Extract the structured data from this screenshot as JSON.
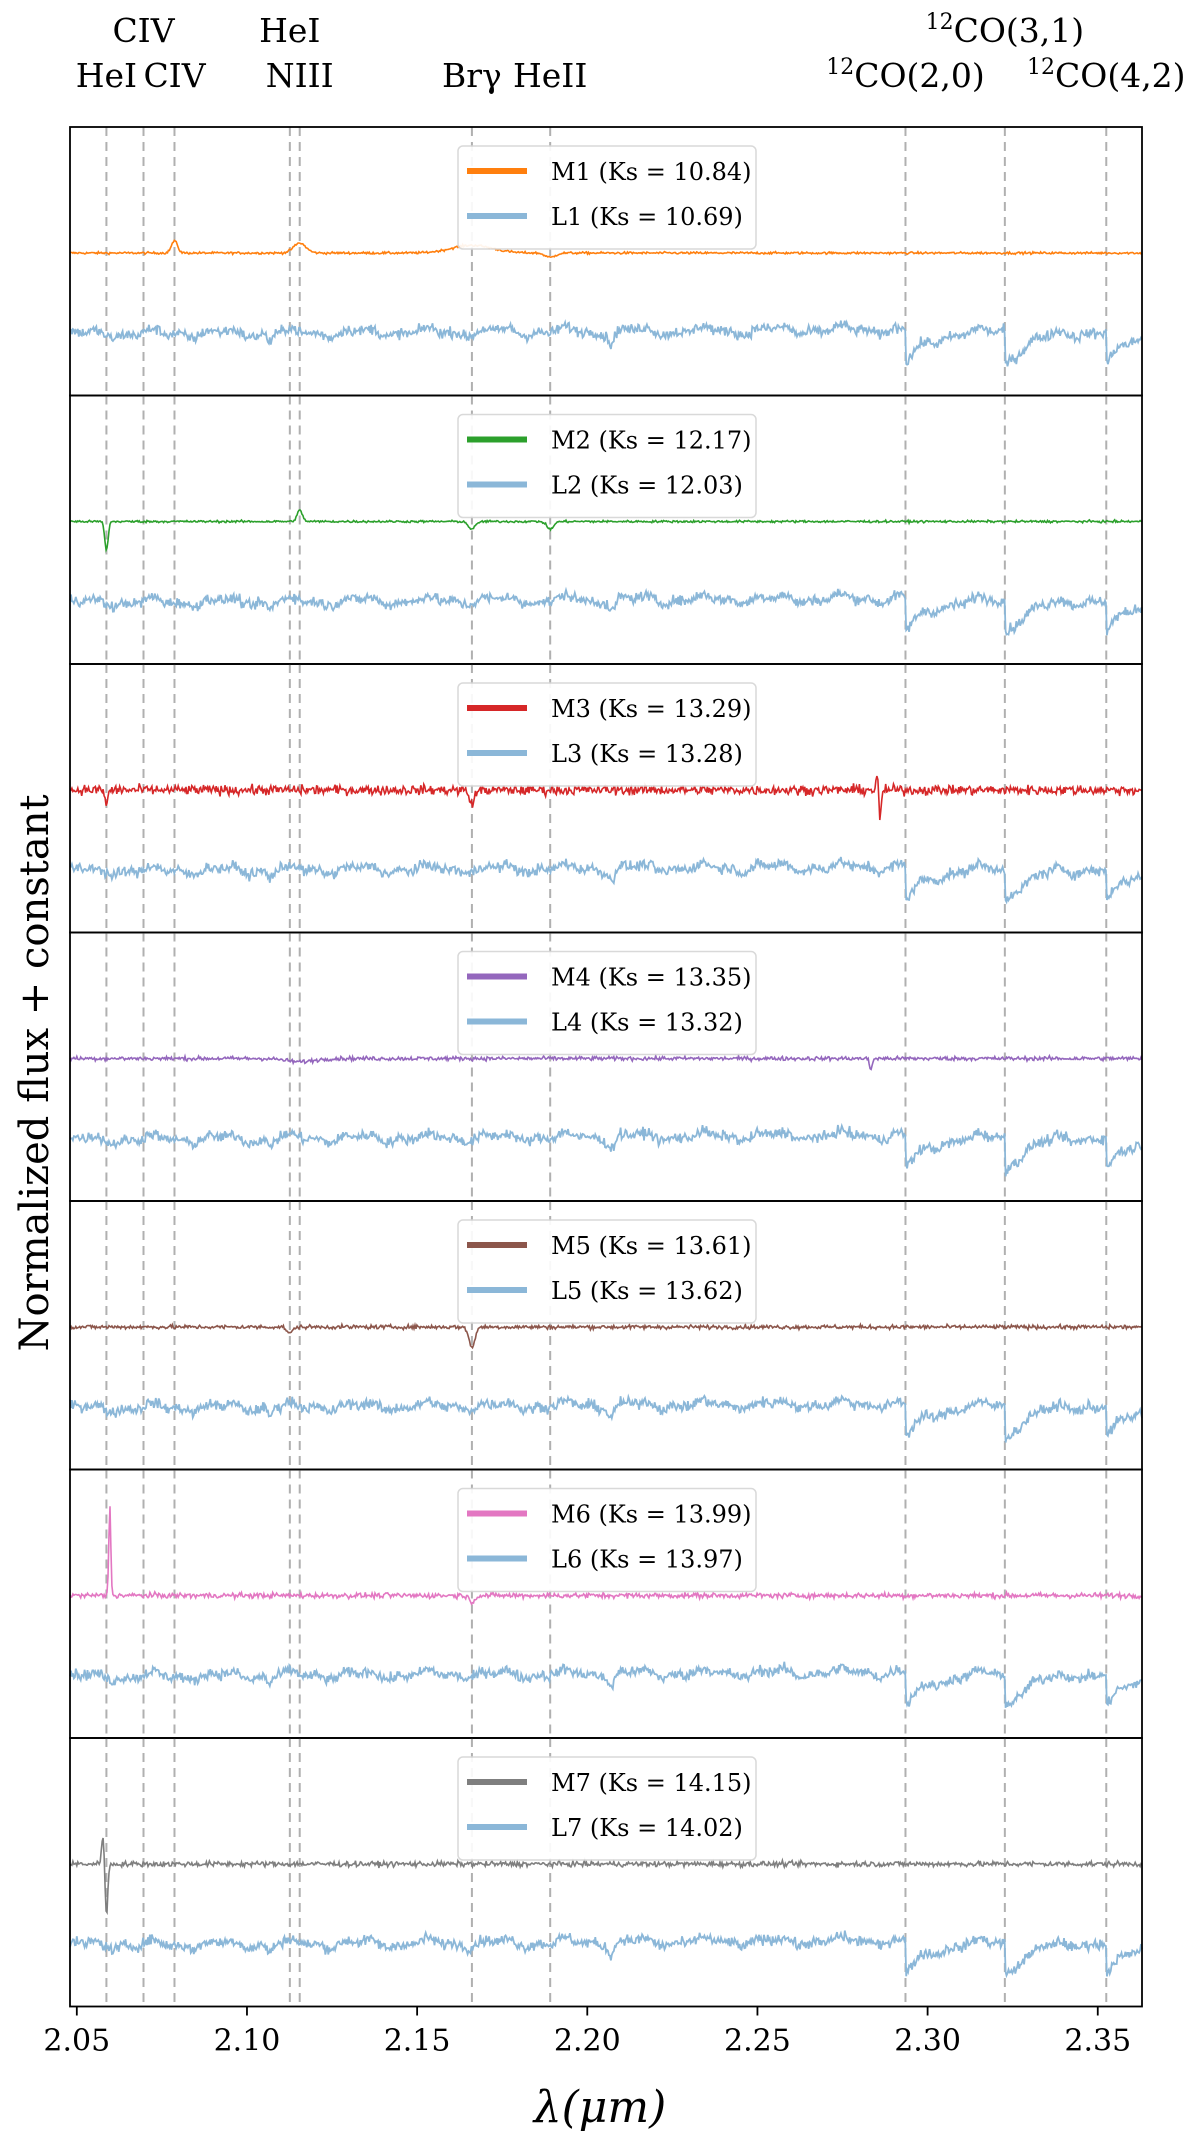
{
  "chart_data": {
    "type": "line",
    "title": "",
    "xlabel": "λ(μm)",
    "ylabel": "Normalized flux + constant",
    "xlim": [
      2.048,
      2.363
    ],
    "xticks": [
      2.05,
      2.1,
      2.15,
      2.2,
      2.25,
      2.3,
      2.35
    ],
    "xtick_labels": [
      "2.05",
      "2.10",
      "2.15",
      "2.20",
      "2.25",
      "2.30",
      "2.35"
    ],
    "grid": false,
    "legend_placement": "upper center",
    "comparison_color": "#8bb7d8",
    "co_bandheads": [
      2.2935,
      2.3227,
      2.3525
    ],
    "spectral_lines": [
      {
        "name": "HeI",
        "wavelength": 2.0587,
        "label_row": "lower"
      },
      {
        "name": "CIV",
        "wavelength": 2.0696,
        "label_row": "upper"
      },
      {
        "name": "CIV",
        "wavelength": 2.0787,
        "label_row": "lower"
      },
      {
        "name": "HeI",
        "wavelength": 2.1126,
        "label_row": "upper"
      },
      {
        "name": "NIII",
        "wavelength": 2.1155,
        "label_row": "lower"
      },
      {
        "name": "Brγ",
        "wavelength": 2.1661,
        "label_row": "lower"
      },
      {
        "name": "HeII",
        "wavelength": 2.1891,
        "label_row": "lower"
      },
      {
        "name": "CO(2,0)",
        "sup": "12",
        "wavelength": 2.2935,
        "label_row": "lower"
      },
      {
        "name": "CO(3,1)",
        "sup": "12",
        "wavelength": 2.3227,
        "label_row": "upper"
      },
      {
        "name": "CO(4,2)",
        "sup": "12",
        "wavelength": 2.3525,
        "label_row": "lower"
      }
    ],
    "panels": [
      {
        "target": {
          "name": "M1 (Ks = 10.84)",
          "color": "#ff7f0e",
          "noise": 0.05,
          "emission": [
            [
              2.0787,
              0.55,
              0.0009
            ],
            [
              2.1155,
              0.45,
              0.0018
            ],
            [
              2.1661,
              0.35,
              0.006
            ]
          ],
          "absorption": [
            [
              2.1891,
              0.2,
              0.0015
            ]
          ]
        },
        "comparison": {
          "name": "L1 (Ks = 10.69)"
        }
      },
      {
        "target": {
          "name": "M2 (Ks = 12.17)",
          "color": "#2ca02c",
          "noise": 0.05,
          "emission": [
            [
              2.1155,
              0.5,
              0.0008
            ]
          ],
          "absorption": [
            [
              2.0587,
              1.3,
              0.0005
            ],
            [
              2.1661,
              0.35,
              0.001
            ],
            [
              2.1891,
              0.35,
              0.001
            ]
          ]
        },
        "comparison": {
          "name": "L2 (Ks = 12.03)"
        }
      },
      {
        "target": {
          "name": "M3 (Ks = 13.29)",
          "color": "#d62728",
          "noise": 0.22,
          "emission": [
            [
              2.2855,
              2.0,
              0.0004
            ]
          ],
          "absorption": [
            [
              2.2858,
              2.6,
              0.0004
            ],
            [
              2.1661,
              0.6,
              0.0008
            ],
            [
              2.0587,
              0.7,
              0.0004
            ]
          ]
        },
        "comparison": {
          "name": "L3 (Ks = 13.28)"
        }
      },
      {
        "target": {
          "name": "M4 (Ks = 13.35)",
          "color": "#9467bd",
          "noise": 0.09,
          "emission": [],
          "absorption": [
            [
              2.1155,
              0.15,
              0.004
            ],
            [
              2.2833,
              0.5,
              0.0004
            ]
          ]
        },
        "comparison": {
          "name": "L4 (Ks = 13.32)"
        }
      },
      {
        "target": {
          "name": "M5 (Ks = 13.61)",
          "color": "#8c564b",
          "noise": 0.09,
          "emission": [],
          "absorption": [
            [
              2.1661,
              0.9,
              0.0009
            ],
            [
              2.1126,
              0.3,
              0.0008
            ]
          ]
        },
        "comparison": {
          "name": "L5 (Ks = 13.62)"
        }
      },
      {
        "target": {
          "name": "M6 (Ks = 13.99)",
          "color": "#e377c2",
          "noise": 0.12,
          "emission": [
            [
              2.0597,
              4.0,
              0.0003
            ]
          ],
          "absorption": [
            [
              2.1661,
              0.3,
              0.0008
            ]
          ]
        },
        "comparison": {
          "name": "L6 (Ks = 13.97)"
        }
      },
      {
        "target": {
          "name": "M7 (Ks = 14.15)",
          "color": "#7f7f7f",
          "noise": 0.12,
          "emission": [
            [
              2.0577,
              1.4,
              0.0004
            ]
          ],
          "absorption": [
            [
              2.0587,
              2.4,
              0.0004
            ]
          ]
        },
        "comparison": {
          "name": "L7 (Ks = 14.02)"
        }
      }
    ]
  }
}
